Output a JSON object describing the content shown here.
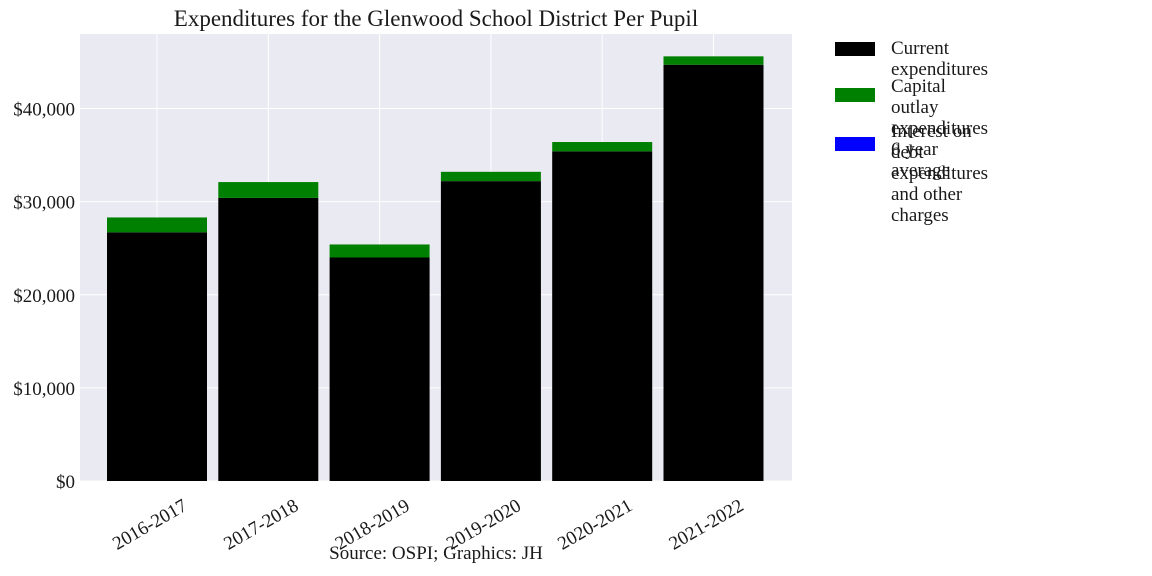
{
  "chart_data": {
    "type": "bar",
    "stacked": true,
    "title": "Expenditures for the Glenwood School District Per Pupil",
    "caption": "Source: OSPI; Graphics: JH",
    "xlabel": "",
    "ylabel": "",
    "categories": [
      "2016-2017",
      "2017-2018",
      "2018-2019",
      "2019-2020",
      "2020-2021",
      "2021-2022"
    ],
    "y_ticks": [
      0,
      10000,
      20000,
      30000,
      40000
    ],
    "y_tick_labels": [
      "$0",
      "$10,000",
      "$20,000",
      "$30,000",
      "$40,000"
    ],
    "ylim": [
      0,
      48000
    ],
    "grid": true,
    "legend_position": "upper right, outside plot",
    "series": [
      {
        "name": "Current expenditures",
        "color": "#000000",
        "values": [
          26700,
          30400,
          24000,
          32200,
          35400,
          44700
        ]
      },
      {
        "name": "Capital outlay expenditures\n6 year average",
        "color": "#008000",
        "values": [
          1600,
          1700,
          1400,
          1000,
          1000,
          900
        ]
      },
      {
        "name": "Interest on debt expenditures\nand other charges",
        "color": "#0000ff",
        "values": [
          0,
          0,
          0,
          0,
          0,
          0
        ]
      }
    ]
  }
}
